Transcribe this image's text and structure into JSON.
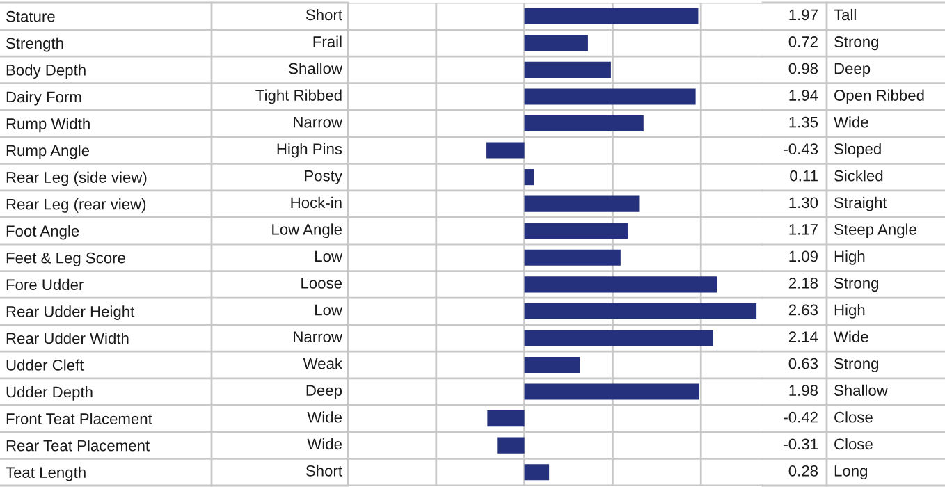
{
  "chart_data": {
    "type": "bar",
    "orientation": "horizontal",
    "categories": [
      "Stature",
      "Strength",
      "Body Depth",
      "Dairy Form",
      "Rump Width",
      "Rump Angle",
      "Rear Leg (side view)",
      "Rear Leg (rear view)",
      "Foot Angle",
      "Feet & Leg Score",
      "Fore Udder",
      "Rear Udder Height",
      "Rear Udder Width",
      "Udder Cleft",
      "Udder Depth",
      "Front Teat Placement",
      "Rear Teat Placement",
      "Teat Length"
    ],
    "values": [
      1.97,
      0.72,
      0.98,
      1.94,
      1.35,
      -0.43,
      0.11,
      1.3,
      1.17,
      1.09,
      2.18,
      2.63,
      2.14,
      0.63,
      1.98,
      -0.42,
      -0.31,
      0.28
    ],
    "value_labels": [
      "1.97",
      "0.72",
      "0.98",
      "1.94",
      "1.35",
      "-0.43",
      "0.11",
      "1.30",
      "1.17",
      "1.09",
      "2.18",
      "2.63",
      "2.14",
      "0.63",
      "1.98",
      "-0.42",
      "-0.31",
      "0.28"
    ],
    "color": "#25317c",
    "xlim": [
      -2,
      2.7
    ],
    "xticks": [
      {
        "value": -2,
        "label": null
      },
      {
        "value": -1,
        "label": null
      },
      {
        "value": 0,
        "label": null
      },
      {
        "value": 1,
        "label": null
      },
      {
        "value": 2,
        "label": null
      }
    ],
    "tick_labels": "y",
    "grid": "x",
    "annotations": [
      "Short",
      "Frail",
      "Shallow",
      "Tight Ribbed",
      "Narrow",
      "High Pins",
      "Posty",
      "Hock-in",
      "Low Angle",
      "Low",
      "Loose",
      "Low",
      "Narrow",
      "Weak",
      "Deep",
      "Wide",
      "Wide",
      "Short",
      "Tall",
      "Strong",
      "Deep",
      "Open Ribbed",
      "Wide",
      "Sloped",
      "Sickled",
      "Straight",
      "Steep Angle",
      "High",
      "Strong",
      "High",
      "Wide",
      "Strong",
      "Shallow",
      "Close",
      "Close",
      "Long"
    ]
  }
}
